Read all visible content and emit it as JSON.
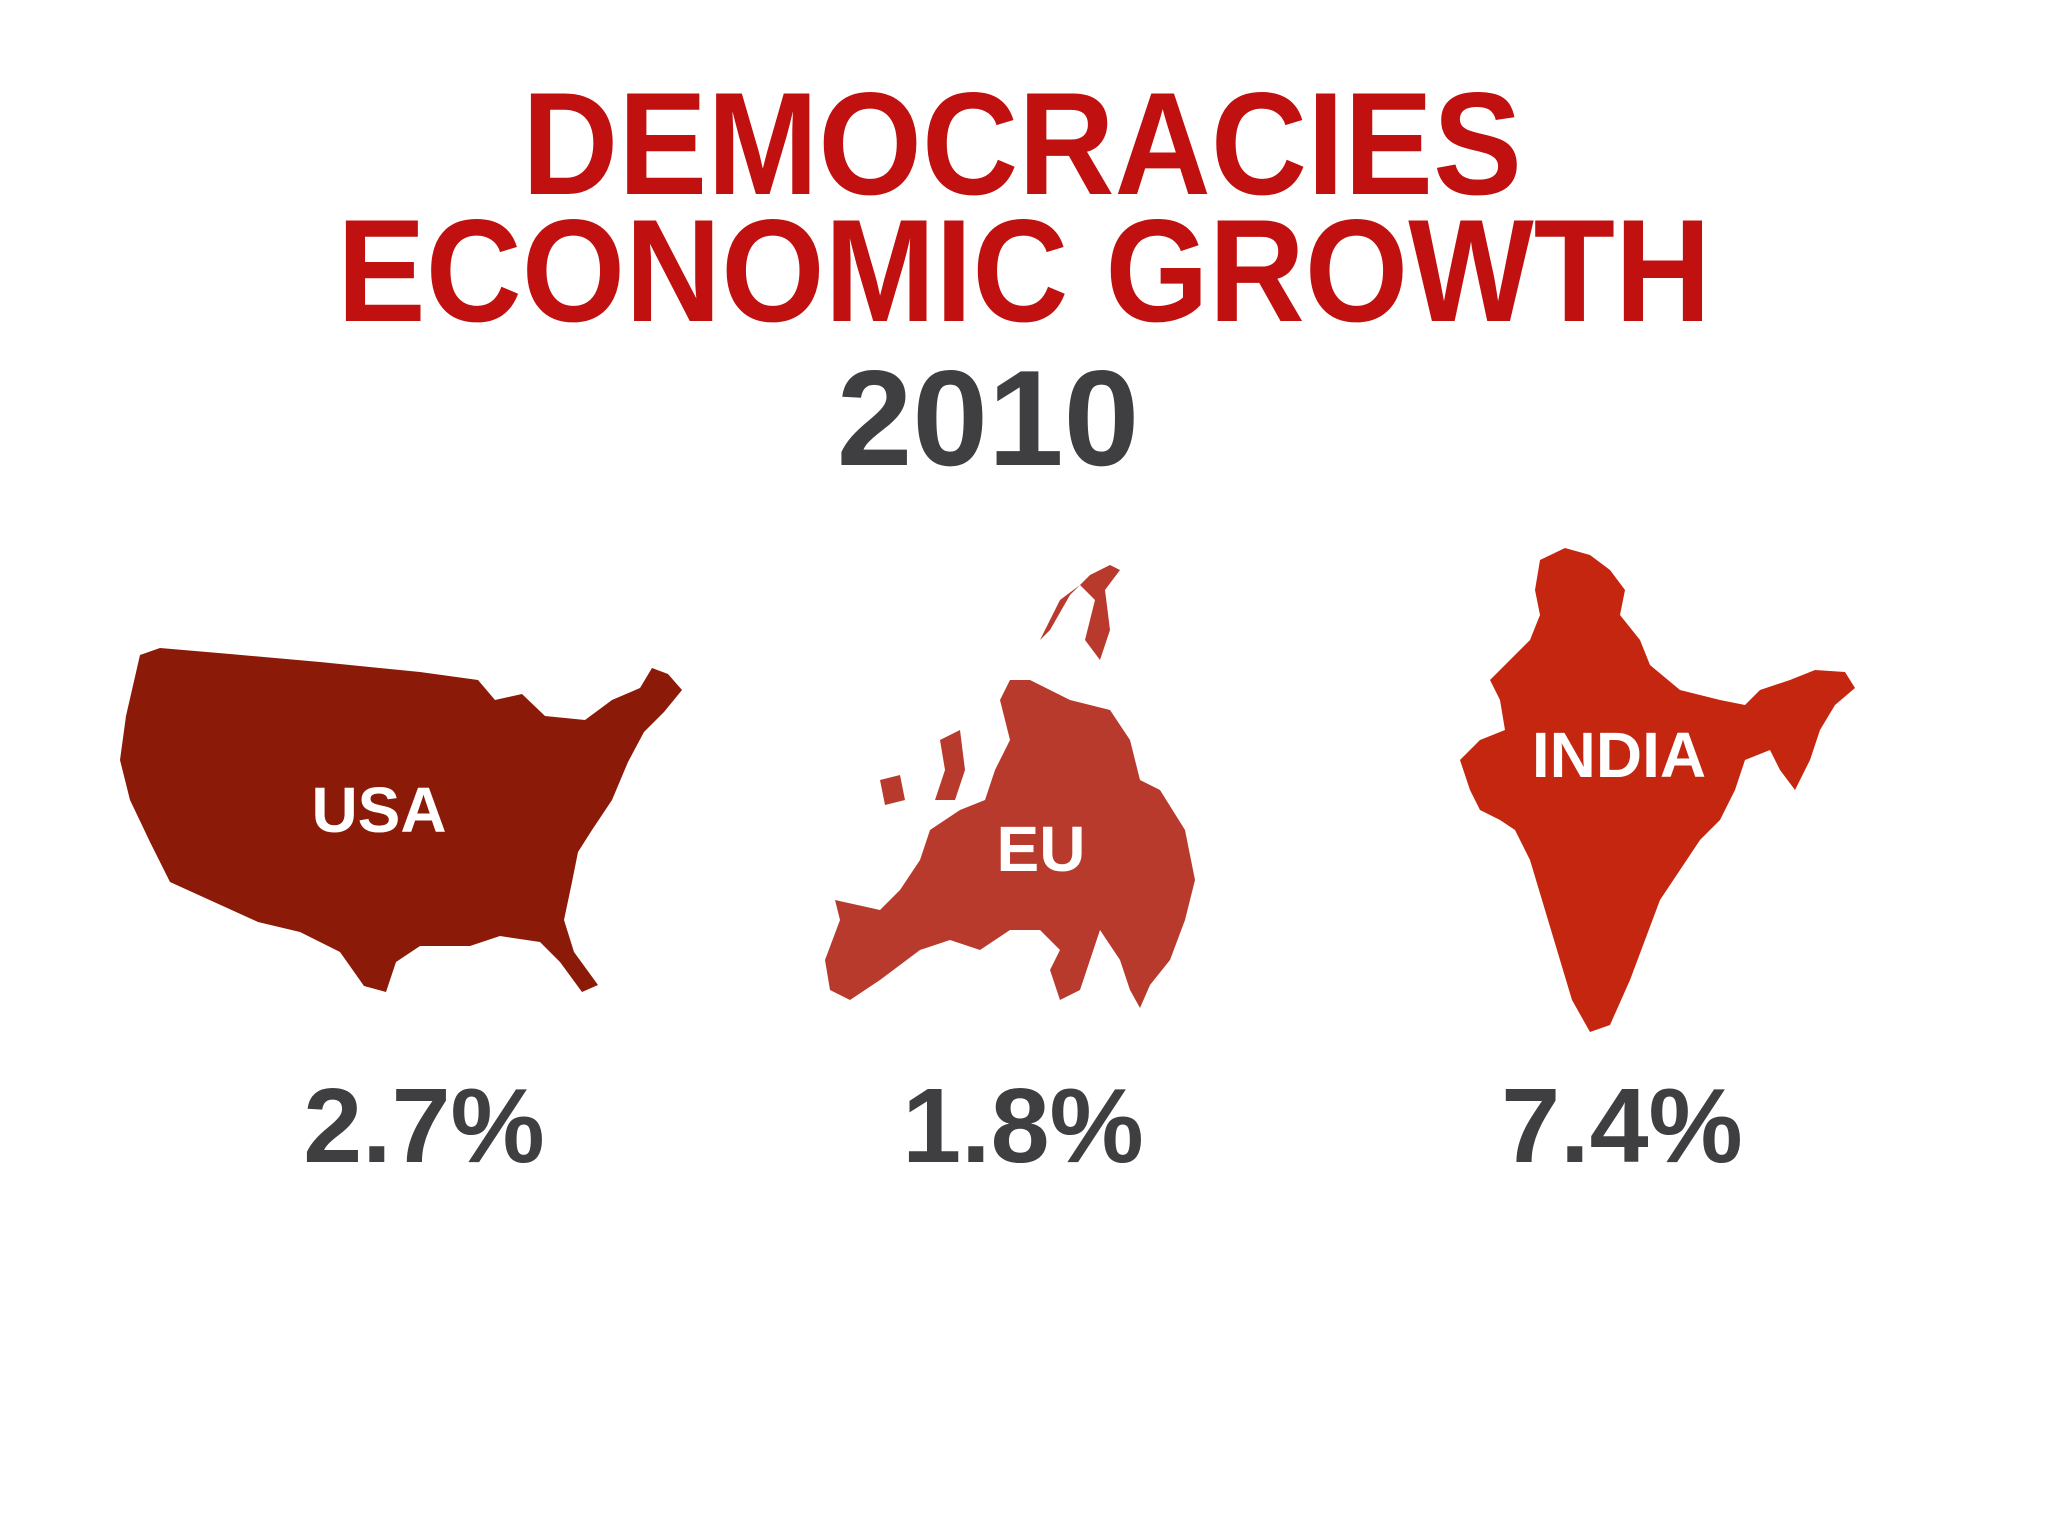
{
  "title": {
    "line1": "DEMOCRACIES",
    "line2": "ECONOMIC GROWTH"
  },
  "year": "2010",
  "regions": [
    {
      "label": "USA",
      "growth": "2.7%"
    },
    {
      "label": "EU",
      "growth": "1.8%"
    },
    {
      "label": "INDIA",
      "growth": "7.4%"
    }
  ]
}
